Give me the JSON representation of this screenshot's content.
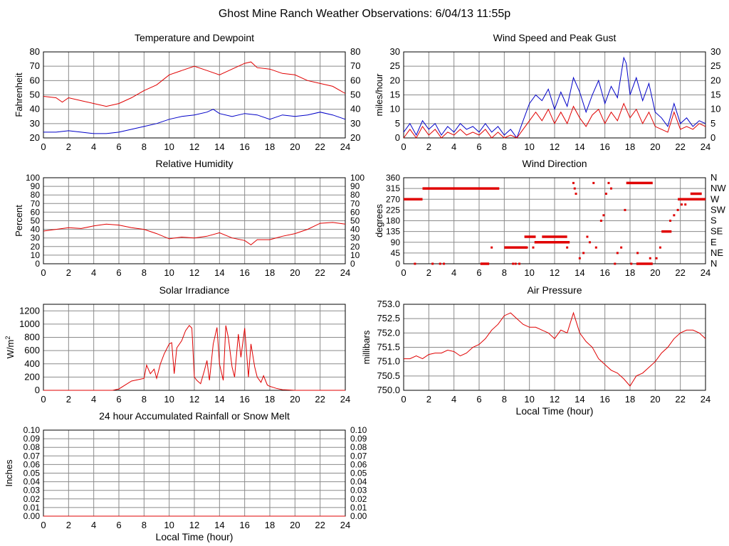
{
  "page_title": "Ghost Mine Ranch Weather Observations: 6/04/13 11:55p",
  "colors": {
    "red": "#e00000",
    "blue": "#0000c8",
    "grid": "#8a8a8a"
  },
  "chart_data": [
    {
      "id": "temperature",
      "type": "line",
      "title": "Temperature and Dewpoint",
      "xlabel": "",
      "ylabel": "Fahrenheit",
      "xlim": [
        0,
        24
      ],
      "ylim": [
        20,
        80
      ],
      "xticks": [
        0,
        2,
        4,
        6,
        8,
        10,
        12,
        14,
        16,
        18,
        20,
        22,
        24
      ],
      "yticks": [
        20,
        30,
        40,
        50,
        60,
        70,
        80
      ],
      "right_ticks": true,
      "grid": true,
      "series": [
        {
          "color": "#e00000",
          "x": [
            0,
            1,
            1.5,
            2,
            3,
            4,
            5,
            5.5,
            6,
            7,
            8,
            9,
            10,
            11,
            12,
            13,
            14,
            15,
            16,
            16.5,
            17,
            18,
            19,
            20,
            21,
            22,
            23,
            24
          ],
          "y": [
            49,
            48,
            45,
            48,
            46,
            44,
            42,
            43,
            44,
            48,
            53,
            57,
            64,
            67,
            70,
            67,
            64,
            68,
            72,
            73,
            69,
            68,
            65,
            64,
            60,
            58,
            56,
            51
          ]
        },
        {
          "color": "#0000c8",
          "x": [
            0,
            1,
            2,
            3,
            4,
            5,
            6,
            7,
            8,
            9,
            10,
            11,
            12,
            13,
            13.5,
            14,
            15,
            16,
            17,
            18,
            19,
            20,
            21,
            22,
            23,
            24
          ],
          "y": [
            24,
            24,
            25,
            24,
            23,
            23,
            24,
            26,
            28,
            30,
            33,
            35,
            36,
            38,
            40,
            37,
            35,
            37,
            36,
            33,
            36,
            35,
            36,
            38,
            36,
            33
          ]
        }
      ]
    },
    {
      "id": "wind",
      "type": "line",
      "title": "Wind Speed and Peak Gust",
      "xlabel": "",
      "ylabel": "miles/hour",
      "xlim": [
        0,
        24
      ],
      "ylim": [
        0,
        30
      ],
      "xticks": [
        0,
        2,
        4,
        6,
        8,
        10,
        12,
        14,
        16,
        18,
        20,
        22,
        24
      ],
      "yticks": [
        0,
        5,
        10,
        15,
        20,
        25,
        30
      ],
      "right_ticks": true,
      "grid": true,
      "series": [
        {
          "color": "#0000c8",
          "x": [
            0,
            0.5,
            1,
            1.5,
            2,
            2.5,
            3,
            3.5,
            4,
            4.5,
            5,
            5.5,
            6,
            6.5,
            7,
            7.5,
            8,
            8.5,
            9,
            9.5,
            10,
            10.5,
            11,
            11.5,
            12,
            12.5,
            13,
            13.5,
            14,
            14.5,
            15,
            15.5,
            16,
            16.5,
            17,
            17.5,
            17.7,
            18,
            18.5,
            19,
            19.5,
            20,
            20.5,
            21,
            21.5,
            22,
            22.5,
            23,
            23.5,
            24
          ],
          "y": [
            2,
            5,
            1,
            6,
            3,
            5,
            1,
            4,
            2,
            5,
            3,
            4,
            2,
            5,
            2,
            4,
            1,
            3,
            0,
            6,
            12,
            15,
            13,
            17,
            10,
            16,
            11,
            21,
            16,
            9,
            15,
            20,
            12,
            18,
            14,
            28,
            26,
            15,
            21,
            13,
            19,
            9,
            7,
            4,
            12,
            5,
            7,
            4,
            6,
            5
          ]
        },
        {
          "color": "#e00000",
          "x": [
            0,
            0.5,
            1,
            1.5,
            2,
            2.5,
            3,
            3.5,
            4,
            4.5,
            5,
            5.5,
            6,
            6.5,
            7,
            7.5,
            8,
            8.5,
            9,
            9.5,
            10,
            10.5,
            11,
            11.5,
            12,
            12.5,
            13,
            13.5,
            14,
            14.5,
            15,
            15.5,
            16,
            16.5,
            17,
            17.5,
            18,
            18.5,
            19,
            19.5,
            20,
            20.5,
            21,
            21.5,
            22,
            22.5,
            23,
            23.5,
            24
          ],
          "y": [
            0,
            3,
            0,
            4,
            1,
            3,
            0,
            2,
            1,
            3,
            1,
            2,
            1,
            3,
            0,
            2,
            0,
            1,
            0,
            3,
            6,
            9,
            6,
            10,
            5,
            9,
            5,
            11,
            7,
            4,
            8,
            10,
            5,
            9,
            6,
            12,
            7,
            10,
            5,
            9,
            4,
            3,
            2,
            9,
            3,
            4,
            3,
            5,
            4
          ]
        }
      ]
    },
    {
      "id": "humidity",
      "type": "line",
      "title": "Relative Humidity",
      "xlabel": "",
      "ylabel": "Percent",
      "xlim": [
        0,
        24
      ],
      "ylim": [
        0,
        100
      ],
      "xticks": [
        0,
        2,
        4,
        6,
        8,
        10,
        12,
        14,
        16,
        18,
        20,
        22,
        24
      ],
      "yticks": [
        0,
        10,
        20,
        30,
        40,
        50,
        60,
        70,
        80,
        90,
        100
      ],
      "right_ticks": true,
      "grid": true,
      "series": [
        {
          "color": "#e00000",
          "x": [
            0,
            1,
            2,
            3,
            4,
            5,
            6,
            7,
            8,
            9,
            10,
            11,
            12,
            13,
            14,
            15,
            16,
            16.5,
            17,
            18,
            19,
            20,
            21,
            22,
            23,
            24
          ],
          "y": [
            38,
            40,
            42,
            41,
            44,
            46,
            45,
            42,
            40,
            35,
            29,
            31,
            30,
            32,
            36,
            30,
            27,
            22,
            28,
            28,
            32,
            35,
            40,
            47,
            48,
            46
          ]
        }
      ]
    },
    {
      "id": "wind-direction",
      "type": "scatter",
      "title": "Wind Direction",
      "xlabel": "",
      "ylabel": "degrees",
      "xlim": [
        0,
        24
      ],
      "ylim": [
        0,
        360
      ],
      "xticks": [
        0,
        2,
        4,
        6,
        8,
        10,
        12,
        14,
        16,
        18,
        20,
        22,
        24
      ],
      "yticks": [
        0,
        45,
        90,
        135,
        180,
        225,
        270,
        315,
        360
      ],
      "right_labels": [
        "N",
        "NE",
        "E",
        "SE",
        "S",
        "SW",
        "W",
        "NW",
        "N"
      ],
      "grid": true,
      "segments": [
        {
          "x0": 0,
          "x1": 1.5,
          "y": 270
        },
        {
          "x0": 1.5,
          "x1": 7.6,
          "y": 315
        },
        {
          "x0": 6.1,
          "x1": 6.8,
          "y": 0
        },
        {
          "x0": 8.0,
          "x1": 9.8,
          "y": 68
        },
        {
          "x0": 9.6,
          "x1": 10.5,
          "y": 113
        },
        {
          "x0": 10.4,
          "x1": 13.2,
          "y": 90
        },
        {
          "x0": 11,
          "x1": 13.0,
          "y": 113
        },
        {
          "x0": 17.7,
          "x1": 19.8,
          "y": 338
        },
        {
          "x0": 18.5,
          "x1": 19.8,
          "y": 0
        },
        {
          "x0": 20.5,
          "x1": 21.3,
          "y": 135
        },
        {
          "x0": 21.8,
          "x1": 24,
          "y": 270
        },
        {
          "x0": 22.8,
          "x1": 23.7,
          "y": 293
        }
      ],
      "points": {
        "color": "#e00000",
        "x": [
          0.9,
          2.3,
          2.9,
          3.2,
          7.0,
          8.7,
          8.9,
          9.2,
          9.8,
          10.3,
          13.0,
          13.5,
          13.6,
          13.7,
          14.0,
          14.3,
          14.6,
          14.8,
          15.1,
          15.3,
          15.7,
          15.9,
          16.1,
          16.3,
          16.5,
          16.8,
          17.0,
          17.3,
          17.6,
          18.1,
          18.6,
          19.2,
          19.6,
          20.1,
          20.4,
          21.2,
          21.5,
          21.8,
          22.1,
          22.4
        ],
        "y": [
          0,
          0,
          0,
          0,
          68,
          0,
          0,
          0,
          68,
          68,
          68,
          338,
          315,
          293,
          23,
          45,
          113,
          90,
          338,
          68,
          180,
          203,
          293,
          338,
          315,
          0,
          45,
          68,
          225,
          0,
          45,
          0,
          23,
          23,
          68,
          180,
          203,
          225,
          248,
          248
        ]
      }
    },
    {
      "id": "solar",
      "type": "line",
      "title": "Solar Irradiance",
      "xlabel": "",
      "ylabel": "W/m2",
      "xlim": [
        0,
        24
      ],
      "ylim": [
        0,
        1300
      ],
      "xticks": [
        0,
        2,
        4,
        6,
        8,
        10,
        12,
        14,
        16,
        18,
        20,
        22,
        24
      ],
      "yticks": [
        0,
        200,
        400,
        600,
        800,
        1000,
        1200
      ],
      "right_ticks": false,
      "grid": true,
      "series": [
        {
          "color": "#e00000",
          "x": [
            0,
            5.5,
            6,
            6.5,
            7,
            7.5,
            8,
            8.2,
            8.5,
            8.8,
            9,
            9.3,
            9.6,
            10,
            10.2,
            10.4,
            10.6,
            11,
            11.3,
            11.6,
            11.8,
            12,
            12.2,
            12.5,
            12.8,
            13,
            13.2,
            13.5,
            13.8,
            14,
            14.3,
            14.5,
            14.7,
            15,
            15.2,
            15.5,
            15.7,
            16,
            16.3,
            16.5,
            16.8,
            17,
            17.3,
            17.5,
            17.8,
            18,
            18.5,
            19,
            19.5,
            20,
            24
          ],
          "y": [
            0,
            0,
            20,
            80,
            140,
            160,
            180,
            380,
            250,
            320,
            180,
            400,
            550,
            700,
            720,
            250,
            640,
            750,
            900,
            980,
            940,
            200,
            150,
            100,
            300,
            450,
            150,
            700,
            950,
            400,
            150,
            980,
            800,
            350,
            200,
            850,
            500,
            940,
            200,
            700,
            350,
            200,
            120,
            220,
            80,
            60,
            30,
            10,
            5,
            0,
            0
          ]
        }
      ]
    },
    {
      "id": "pressure",
      "type": "line",
      "title": "Air Pressure",
      "xlabel": "Local Time (hour)",
      "ylabel": "millibars",
      "xlim": [
        0,
        24
      ],
      "ylim": [
        750.0,
        753.0
      ],
      "xticks": [
        0,
        2,
        4,
        6,
        8,
        10,
        12,
        14,
        16,
        18,
        20,
        22,
        24
      ],
      "yticks": [
        750.0,
        750.5,
        751.0,
        751.5,
        752.0,
        752.5,
        753.0
      ],
      "ytick_labels": [
        "750.0",
        "750.5",
        "751.0",
        "751.5",
        "752.0",
        "752.5",
        "753.0"
      ],
      "right_ticks": false,
      "grid": true,
      "series": [
        {
          "color": "#e00000",
          "x": [
            0,
            0.5,
            1,
            1.5,
            2,
            2.5,
            3,
            3.5,
            4,
            4.5,
            5,
            5.5,
            6,
            6.5,
            7,
            7.5,
            8,
            8.5,
            9,
            9.5,
            10,
            10.5,
            11,
            11.5,
            12,
            12.5,
            13,
            13.5,
            14,
            14.5,
            15,
            15.5,
            16,
            16.5,
            17,
            17.5,
            18,
            18.5,
            19,
            19.5,
            20,
            20.5,
            21,
            21.5,
            22,
            22.5,
            23,
            23.5,
            24
          ],
          "y": [
            751.1,
            751.1,
            751.2,
            751.1,
            751.25,
            751.3,
            751.3,
            751.4,
            751.35,
            751.2,
            751.3,
            751.5,
            751.6,
            751.8,
            752.1,
            752.3,
            752.6,
            752.7,
            752.5,
            752.3,
            752.2,
            752.2,
            752.1,
            752.0,
            751.8,
            752.1,
            752.0,
            752.7,
            752.0,
            751.7,
            751.5,
            751.1,
            750.9,
            750.7,
            750.6,
            750.4,
            750.15,
            750.5,
            750.6,
            750.8,
            751.0,
            751.3,
            751.5,
            751.8,
            752.0,
            752.1,
            752.1,
            752.0,
            751.8
          ]
        }
      ]
    },
    {
      "id": "rainfall",
      "type": "line",
      "title": "24 hour Accumulated Rainfall or Snow Melt",
      "xlabel": "Local Time (hour)",
      "ylabel": "Inches",
      "xlim": [
        0,
        24
      ],
      "ylim": [
        0,
        0.1
      ],
      "xticks": [
        0,
        2,
        4,
        6,
        8,
        10,
        12,
        14,
        16,
        18,
        20,
        22,
        24
      ],
      "yticks": [
        0,
        0.01,
        0.02,
        0.03,
        0.04,
        0.05,
        0.06,
        0.07,
        0.08,
        0.09,
        0.1
      ],
      "ytick_labels": [
        "0.00",
        "0.01",
        "0.02",
        "0.03",
        "0.04",
        "0.05",
        "0.06",
        "0.07",
        "0.08",
        "0.09",
        "0.10"
      ],
      "right_ticks": true,
      "grid": true,
      "series": [
        {
          "color": "#e00000",
          "x": [
            0,
            24
          ],
          "y": [
            0,
            0
          ]
        }
      ]
    }
  ]
}
